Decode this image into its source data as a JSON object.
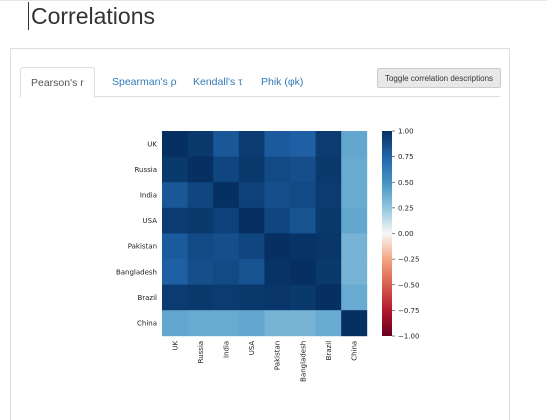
{
  "page": {
    "title": "Correlations"
  },
  "tabs": [
    {
      "label": "Pearson's r",
      "active": true
    },
    {
      "label": "Spearman's ρ",
      "active": false
    },
    {
      "label": "Kendall's τ",
      "active": false
    },
    {
      "label": "Phik (φk)",
      "active": false
    }
  ],
  "toggle_button": {
    "label": "Toggle correlation descriptions"
  },
  "chart_data": {
    "type": "heatmap",
    "variables": [
      "UK",
      "Russia",
      "India",
      "USA",
      "Pakistan",
      "Bangladesh",
      "Brazil",
      "China"
    ],
    "matrix": [
      [
        1.0,
        0.96,
        0.82,
        0.95,
        0.8,
        0.78,
        0.95,
        0.4
      ],
      [
        0.96,
        1.0,
        0.9,
        0.96,
        0.88,
        0.86,
        0.96,
        0.38
      ],
      [
        0.82,
        0.9,
        1.0,
        0.92,
        0.86,
        0.88,
        0.95,
        0.38
      ],
      [
        0.95,
        0.96,
        0.92,
        1.0,
        0.9,
        0.84,
        0.96,
        0.4
      ],
      [
        0.8,
        0.88,
        0.86,
        0.9,
        1.0,
        0.98,
        0.97,
        0.34
      ],
      [
        0.78,
        0.86,
        0.88,
        0.84,
        0.98,
        1.0,
        0.96,
        0.34
      ],
      [
        0.95,
        0.96,
        0.95,
        0.96,
        0.97,
        0.96,
        1.0,
        0.38
      ],
      [
        0.4,
        0.38,
        0.38,
        0.4,
        0.34,
        0.34,
        0.38,
        1.0
      ]
    ],
    "colorbar": {
      "range": [
        -1,
        1
      ],
      "ticks": [
        "1.00",
        "0.75",
        "0.50",
        "0.25",
        "0.00",
        "−0.25",
        "−0.50",
        "−0.75",
        "−1.00"
      ],
      "colormap": "RdBu"
    }
  }
}
